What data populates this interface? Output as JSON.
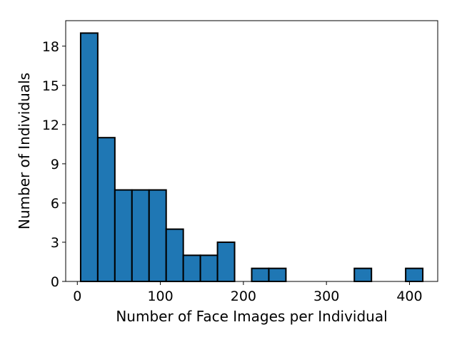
{
  "chart_data": {
    "type": "bar",
    "title": "",
    "xlabel": "Number of Face Images per Individual",
    "ylabel": "Number of Individuals",
    "xlim": [
      -14,
      434
    ],
    "ylim": [
      0,
      19.95
    ],
    "xticks": [
      0,
      100,
      200,
      300,
      400
    ],
    "yticks": [
      0,
      3,
      6,
      9,
      12,
      15,
      18
    ],
    "grid": false,
    "bar_color": "#1f77b4",
    "edge_color": "#000000",
    "bins": [
      {
        "x0": 4.0,
        "x1": 24.6,
        "count": 19
      },
      {
        "x0": 24.6,
        "x1": 45.2,
        "count": 11
      },
      {
        "x0": 45.2,
        "x1": 65.8,
        "count": 7
      },
      {
        "x0": 65.8,
        "x1": 86.4,
        "count": 7
      },
      {
        "x0": 86.4,
        "x1": 107.0,
        "count": 7
      },
      {
        "x0": 107.0,
        "x1": 127.6,
        "count": 4
      },
      {
        "x0": 127.6,
        "x1": 148.2,
        "count": 2
      },
      {
        "x0": 148.2,
        "x1": 168.8,
        "count": 2
      },
      {
        "x0": 168.8,
        "x1": 189.4,
        "count": 3
      },
      {
        "x0": 189.4,
        "x1": 210.0,
        "count": 0
      },
      {
        "x0": 210.0,
        "x1": 230.6,
        "count": 1
      },
      {
        "x0": 230.6,
        "x1": 251.2,
        "count": 1
      },
      {
        "x0": 251.2,
        "x1": 271.8,
        "count": 0
      },
      {
        "x0": 271.8,
        "x1": 292.4,
        "count": 0
      },
      {
        "x0": 292.4,
        "x1": 313.0,
        "count": 0
      },
      {
        "x0": 313.0,
        "x1": 333.6,
        "count": 0
      },
      {
        "x0": 333.6,
        "x1": 354.2,
        "count": 1
      },
      {
        "x0": 354.2,
        "x1": 374.8,
        "count": 0
      },
      {
        "x0": 374.8,
        "x1": 395.4,
        "count": 0
      },
      {
        "x0": 395.4,
        "x1": 416.0,
        "count": 1
      }
    ]
  }
}
